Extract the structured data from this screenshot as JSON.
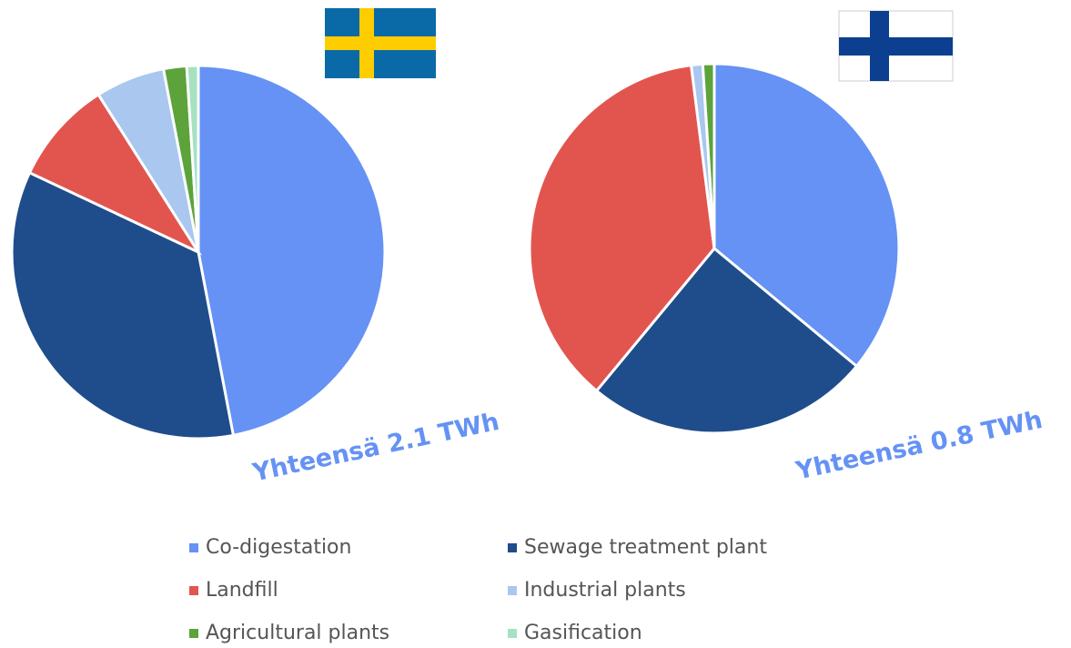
{
  "chart_data": [
    {
      "type": "pie",
      "annotation": "Yhteensä 2.1 TWh",
      "categories": [
        "Co-digestation",
        "Sewage treatment plant",
        "Landfill",
        "Industrial plants",
        "Agricultural plants",
        "Gasification"
      ],
      "values": [
        47,
        35,
        9,
        6,
        2,
        1
      ],
      "colors": [
        "#6592f4",
        "#1f4d8b",
        "#e2554f",
        "#a9c7ef",
        "#5ca33b",
        "#a6e2c2"
      ]
    },
    {
      "type": "pie",
      "annotation": "Yhteensä 0.8 TWh",
      "categories": [
        "Co-digestation",
        "Sewage treatment plant",
        "Landfill",
        "Industrial plants",
        "Agricultural plants",
        "Gasification"
      ],
      "values": [
        36,
        25,
        37,
        1,
        1,
        0
      ],
      "colors": [
        "#6592f4",
        "#1f4d8b",
        "#e2554f",
        "#a9c7ef",
        "#5ca33b",
        "#a6e2c2"
      ]
    }
  ]
}
